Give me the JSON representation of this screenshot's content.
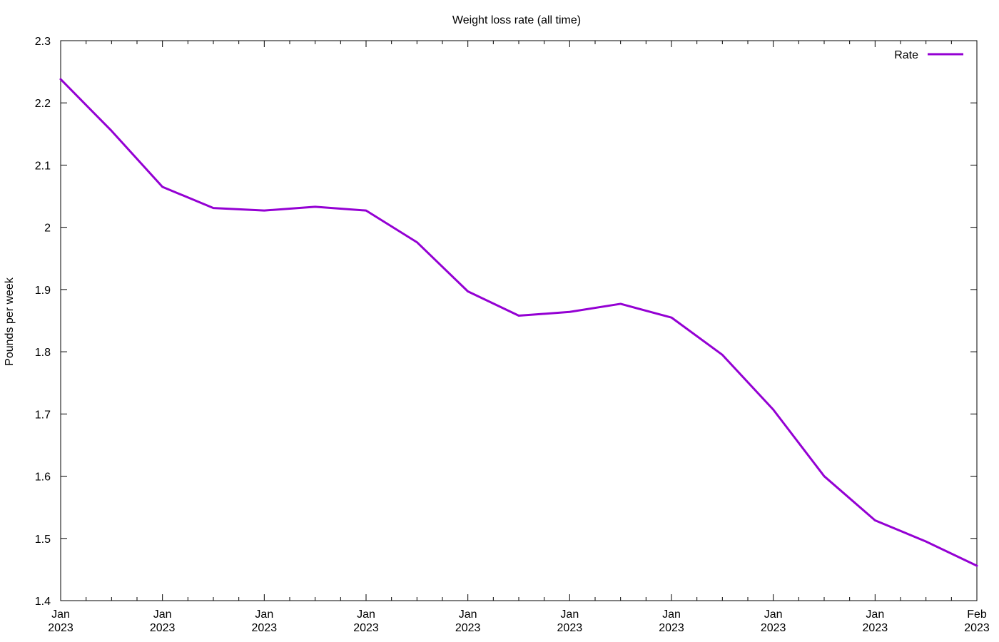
{
  "chart_data": {
    "type": "line",
    "title": "Weight loss rate (all time)",
    "xlabel": "",
    "ylabel": "Pounds per week",
    "ylim": [
      1.4,
      2.3
    ],
    "y_ticks": [
      "1.4",
      "1.5",
      "1.6",
      "1.7",
      "1.8",
      "1.9",
      "2",
      "2.1",
      "2.2",
      "2.3"
    ],
    "x_tick_labels": [
      [
        "Jan",
        "2023"
      ],
      [
        "Jan",
        "2023"
      ],
      [
        "Jan",
        "2023"
      ],
      [
        "Jan",
        "2023"
      ],
      [
        "Jan",
        "2023"
      ],
      [
        "Jan",
        "2023"
      ],
      [
        "Jan",
        "2023"
      ],
      [
        "Jan",
        "2023"
      ],
      [
        "Jan",
        "2023"
      ],
      [
        "Feb",
        "2023"
      ]
    ],
    "grid": false,
    "legend_position": "top-right",
    "series": [
      {
        "name": "Rate",
        "color": "#9400d3",
        "values": [
          2.238,
          2.155,
          2.065,
          2.031,
          2.027,
          2.033,
          2.027,
          1.976,
          1.897,
          1.858,
          1.864,
          1.877,
          1.855,
          1.795,
          1.707,
          1.6,
          1.529,
          1.495,
          1.456
        ]
      }
    ]
  }
}
